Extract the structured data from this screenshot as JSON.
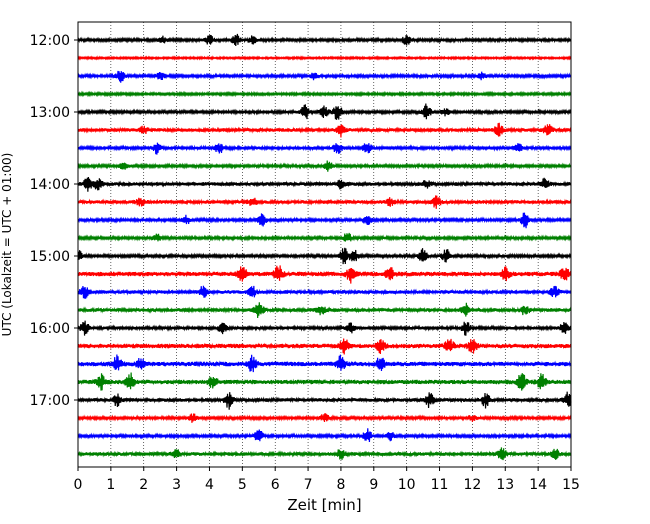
{
  "chart_data": {
    "type": "line",
    "title": "",
    "xlabel": "Zeit  [min]",
    "ylabel": "UTC (Lokalzeit = UTC + 01:00)",
    "xlim": [
      0,
      15
    ],
    "x_ticks": [
      0,
      1,
      2,
      3,
      4,
      5,
      6,
      7,
      8,
      9,
      10,
      11,
      12,
      13,
      14,
      15
    ],
    "x_tick_labels": [
      "0",
      "1",
      "2",
      "3",
      "4",
      "5",
      "6",
      "7",
      "8",
      "9",
      "10",
      "11",
      "12",
      "13",
      "14",
      "15"
    ],
    "y_tick_labels": [
      "12:00",
      "13:00",
      "14:00",
      "15:00",
      "16:00",
      "17:00"
    ],
    "y_tick_times": [
      "12:00",
      "13:00",
      "14:00",
      "15:00",
      "16:00",
      "17:00"
    ],
    "grid": {
      "x": true,
      "y": false,
      "style": "dotted"
    },
    "trace_interval_minutes": 15,
    "colors": [
      "#000000",
      "#ff0000",
      "#0000ff",
      "#008000"
    ],
    "series": [
      {
        "start": "12:00",
        "color": "#000000",
        "amplitude": 0.6,
        "bursts": [
          [
            2.6,
            0.6
          ],
          [
            4.0,
            0.8
          ],
          [
            4.8,
            1.0
          ],
          [
            5.3,
            0.6
          ],
          [
            10.0,
            0.8
          ]
        ]
      },
      {
        "start": "12:15",
        "color": "#ff0000",
        "amplitude": 0.4,
        "bursts": []
      },
      {
        "start": "12:30",
        "color": "#0000ff",
        "amplitude": 0.6,
        "bursts": [
          [
            1.3,
            1.2
          ],
          [
            2.5,
            0.7
          ],
          [
            7.2,
            0.6
          ],
          [
            12.3,
            0.6
          ]
        ]
      },
      {
        "start": "12:45",
        "color": "#008000",
        "amplitude": 0.5,
        "bursts": []
      },
      {
        "start": "13:00",
        "color": "#000000",
        "amplitude": 0.6,
        "bursts": [
          [
            6.9,
            1.4
          ],
          [
            7.5,
            1.0
          ],
          [
            7.9,
            1.4
          ],
          [
            10.6,
            1.3
          ],
          [
            11.2,
            0.7
          ]
        ]
      },
      {
        "start": "13:15",
        "color": "#ff0000",
        "amplitude": 0.8,
        "bursts": [
          [
            2.0,
            0.6
          ],
          [
            8.0,
            1.0
          ],
          [
            12.8,
            1.0
          ],
          [
            14.3,
            0.9
          ]
        ]
      },
      {
        "start": "13:30",
        "color": "#0000ff",
        "amplitude": 0.7,
        "bursts": [
          [
            2.4,
            0.9
          ],
          [
            4.3,
            0.9
          ],
          [
            7.9,
            0.9
          ],
          [
            8.8,
            1.0
          ],
          [
            13.4,
            0.6
          ]
        ]
      },
      {
        "start": "13:45",
        "color": "#008000",
        "amplitude": 0.6,
        "bursts": [
          [
            1.4,
            0.6
          ],
          [
            7.6,
            1.0
          ]
        ]
      },
      {
        "start": "14:00",
        "color": "#000000",
        "amplitude": 0.8,
        "bursts": [
          [
            0.3,
            1.1
          ],
          [
            0.6,
            1.0
          ],
          [
            8.0,
            0.7
          ],
          [
            10.6,
            0.7
          ],
          [
            14.2,
            0.8
          ]
        ]
      },
      {
        "start": "14:15",
        "color": "#ff0000",
        "amplitude": 0.8,
        "bursts": [
          [
            1.9,
            0.6
          ],
          [
            5.3,
            0.7
          ],
          [
            9.5,
            0.6
          ],
          [
            10.9,
            0.9
          ]
        ]
      },
      {
        "start": "14:30",
        "color": "#0000ff",
        "amplitude": 0.6,
        "bursts": [
          [
            3.3,
            0.7
          ],
          [
            5.6,
            1.0
          ],
          [
            8.8,
            0.8
          ],
          [
            13.6,
            1.3
          ]
        ]
      },
      {
        "start": "14:45",
        "color": "#008000",
        "amplitude": 0.6,
        "bursts": [
          [
            2.4,
            0.6
          ],
          [
            8.2,
            0.9
          ]
        ]
      },
      {
        "start": "15:00",
        "color": "#000000",
        "amplitude": 0.6,
        "bursts": [
          [
            0.0,
            1.0
          ],
          [
            8.1,
            1.4
          ],
          [
            8.4,
            1.0
          ],
          [
            10.5,
            1.3
          ],
          [
            11.2,
            1.2
          ]
        ]
      },
      {
        "start": "15:15",
        "color": "#ff0000",
        "amplitude": 1.0,
        "bursts": [
          [
            5.0,
            1.2
          ],
          [
            6.1,
            1.4
          ],
          [
            8.3,
            1.3
          ],
          [
            9.5,
            1.1
          ],
          [
            13.0,
            1.0
          ],
          [
            14.8,
            1.3
          ]
        ]
      },
      {
        "start": "15:30",
        "color": "#0000ff",
        "amplitude": 0.8,
        "bursts": [
          [
            0.2,
            1.0
          ],
          [
            3.8,
            1.0
          ],
          [
            5.3,
            0.9
          ],
          [
            14.5,
            0.9
          ]
        ]
      },
      {
        "start": "15:45",
        "color": "#008000",
        "amplitude": 0.8,
        "bursts": [
          [
            5.5,
            1.4
          ],
          [
            7.4,
            0.7
          ],
          [
            11.8,
            1.1
          ],
          [
            13.6,
            0.8
          ]
        ]
      },
      {
        "start": "16:00",
        "color": "#000000",
        "amplitude": 0.7,
        "bursts": [
          [
            0.2,
            1.2
          ],
          [
            4.4,
            1.0
          ],
          [
            8.3,
            0.8
          ],
          [
            11.8,
            1.3
          ],
          [
            14.8,
            1.0
          ]
        ]
      },
      {
        "start": "16:15",
        "color": "#ff0000",
        "amplitude": 1.0,
        "bursts": [
          [
            8.1,
            1.3
          ],
          [
            9.2,
            1.1
          ],
          [
            11.3,
            1.1
          ],
          [
            12.0,
            1.2
          ]
        ]
      },
      {
        "start": "16:30",
        "color": "#0000ff",
        "amplitude": 1.0,
        "bursts": [
          [
            1.2,
            1.4
          ],
          [
            1.9,
            0.9
          ],
          [
            5.3,
            1.4
          ],
          [
            8.0,
            1.3
          ],
          [
            9.2,
            1.2
          ]
        ]
      },
      {
        "start": "16:45",
        "color": "#008000",
        "amplitude": 1.0,
        "bursts": [
          [
            0.7,
            1.2
          ],
          [
            1.6,
            1.5
          ],
          [
            4.1,
            1.1
          ],
          [
            13.5,
            1.4
          ],
          [
            14.1,
            1.2
          ]
        ]
      },
      {
        "start": "17:00",
        "color": "#000000",
        "amplitude": 0.8,
        "bursts": [
          [
            1.2,
            1.0
          ],
          [
            4.6,
            1.4
          ],
          [
            10.7,
            1.3
          ],
          [
            12.4,
            1.2
          ],
          [
            14.9,
            1.2
          ]
        ]
      },
      {
        "start": "17:15",
        "color": "#ff0000",
        "amplitude": 0.6,
        "bursts": [
          [
            3.5,
            0.7
          ],
          [
            7.5,
            0.7
          ],
          [
            12.0,
            0.6
          ]
        ]
      },
      {
        "start": "17:30",
        "color": "#0000ff",
        "amplitude": 0.6,
        "bursts": [
          [
            5.5,
            1.2
          ],
          [
            8.8,
            1.2
          ],
          [
            9.5,
            0.7
          ]
        ]
      },
      {
        "start": "17:45",
        "color": "#008000",
        "amplitude": 0.8,
        "bursts": [
          [
            3.0,
            0.7
          ],
          [
            8.0,
            0.8
          ],
          [
            12.9,
            1.0
          ],
          [
            14.5,
            1.0
          ]
        ]
      }
    ]
  }
}
